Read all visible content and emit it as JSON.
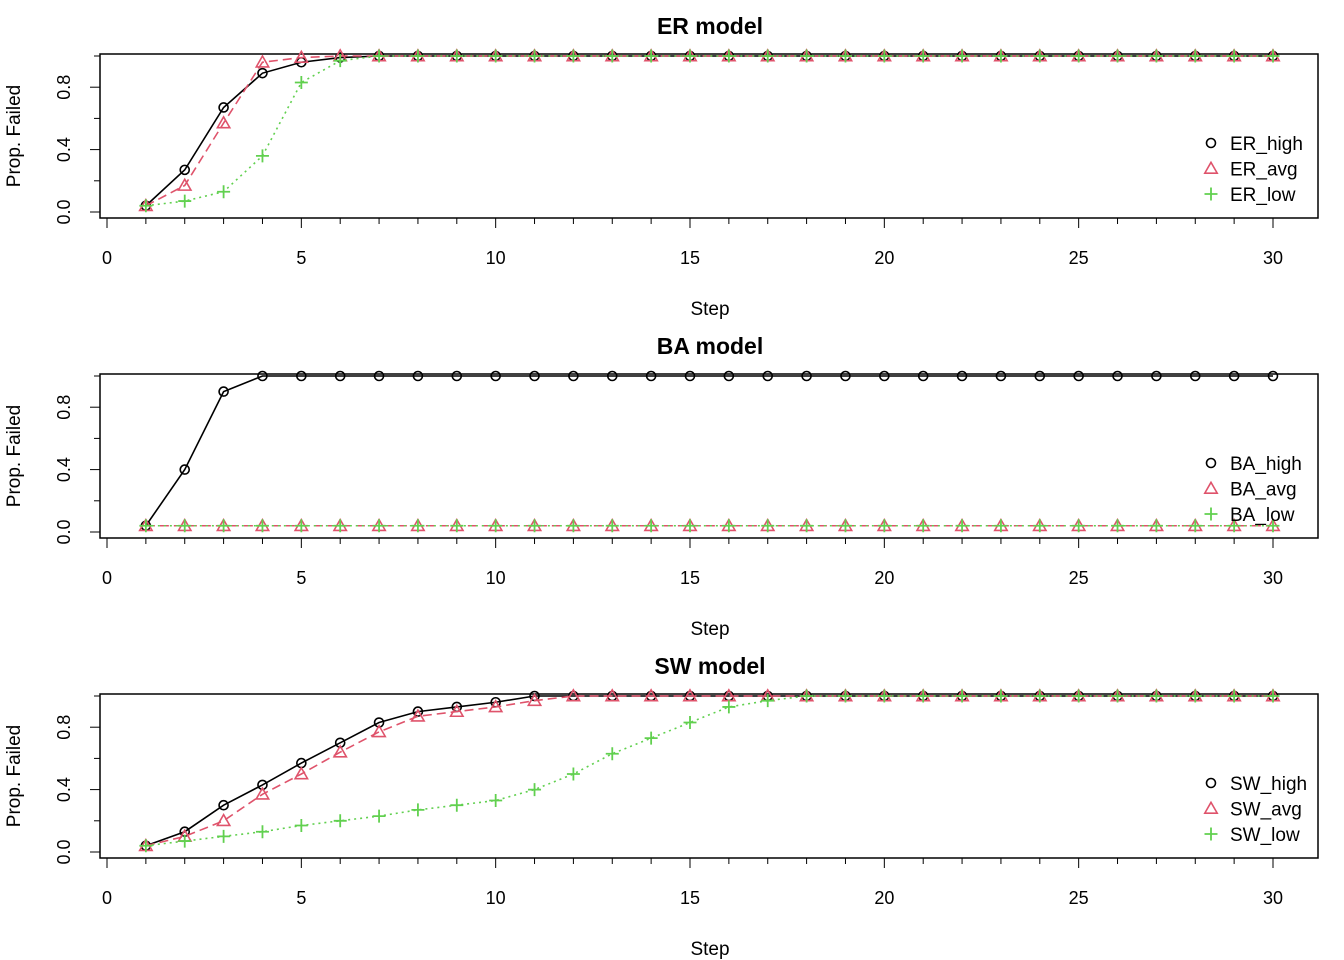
{
  "chart_data": [
    {
      "type": "line",
      "title": "ER model",
      "xlabel": "Step",
      "ylabel": "Prop. Failed",
      "xlim": [
        0,
        30
      ],
      "ylim": [
        0,
        1
      ],
      "xticks": [
        0,
        5,
        10,
        15,
        20,
        25,
        30
      ],
      "yticks": [
        0.0,
        0.4,
        0.8
      ],
      "ytick_labels": [
        "0.0",
        "0.4",
        "0.8"
      ],
      "legend_position": "right",
      "x": [
        1,
        2,
        3,
        4,
        5,
        6,
        7,
        8,
        9,
        10,
        11,
        12,
        13,
        14,
        15,
        16,
        17,
        18,
        19,
        20,
        21,
        22,
        23,
        24,
        25,
        26,
        27,
        28,
        29,
        30
      ],
      "series": [
        {
          "name": "ER_high",
          "color": "#000000",
          "marker": "circle",
          "dash": "solid",
          "values": [
            0.04,
            0.27,
            0.67,
            0.89,
            0.96,
            0.99,
            1,
            1,
            1,
            1,
            1,
            1,
            1,
            1,
            1,
            1,
            1,
            1,
            1,
            1,
            1,
            1,
            1,
            1,
            1,
            1,
            1,
            1,
            1,
            1
          ]
        },
        {
          "name": "ER_avg",
          "color": "#DF536B",
          "marker": "triangle",
          "dash": "dashed",
          "values": [
            0.04,
            0.17,
            0.57,
            0.96,
            0.99,
            1,
            1,
            1,
            1,
            1,
            1,
            1,
            1,
            1,
            1,
            1,
            1,
            1,
            1,
            1,
            1,
            1,
            1,
            1,
            1,
            1,
            1,
            1,
            1,
            1
          ]
        },
        {
          "name": "ER_low",
          "color": "#61D04F",
          "marker": "plus",
          "dash": "dotted",
          "values": [
            0.04,
            0.07,
            0.13,
            0.36,
            0.83,
            0.97,
            1,
            1,
            1,
            1,
            1,
            1,
            1,
            1,
            1,
            1,
            1,
            1,
            1,
            1,
            1,
            1,
            1,
            1,
            1,
            1,
            1,
            1,
            1,
            1
          ]
        }
      ]
    },
    {
      "type": "line",
      "title": "BA model",
      "xlabel": "Step",
      "ylabel": "Prop. Failed",
      "xlim": [
        0,
        30
      ],
      "ylim": [
        0,
        1
      ],
      "xticks": [
        0,
        5,
        10,
        15,
        20,
        25,
        30
      ],
      "yticks": [
        0.0,
        0.4,
        0.8
      ],
      "ytick_labels": [
        "0.0",
        "0.4",
        "0.8"
      ],
      "legend_position": "right",
      "x": [
        1,
        2,
        3,
        4,
        5,
        6,
        7,
        8,
        9,
        10,
        11,
        12,
        13,
        14,
        15,
        16,
        17,
        18,
        19,
        20,
        21,
        22,
        23,
        24,
        25,
        26,
        27,
        28,
        29,
        30
      ],
      "series": [
        {
          "name": "BA_high",
          "color": "#000000",
          "marker": "circle",
          "dash": "solid",
          "values": [
            0.04,
            0.4,
            0.9,
            1,
            1,
            1,
            1,
            1,
            1,
            1,
            1,
            1,
            1,
            1,
            1,
            1,
            1,
            1,
            1,
            1,
            1,
            1,
            1,
            1,
            1,
            1,
            1,
            1,
            1,
            1
          ]
        },
        {
          "name": "BA_avg",
          "color": "#DF536B",
          "marker": "triangle",
          "dash": "dashed",
          "values": [
            0.04,
            0.04,
            0.04,
            0.04,
            0.04,
            0.04,
            0.04,
            0.04,
            0.04,
            0.04,
            0.04,
            0.04,
            0.04,
            0.04,
            0.04,
            0.04,
            0.04,
            0.04,
            0.04,
            0.04,
            0.04,
            0.04,
            0.04,
            0.04,
            0.04,
            0.04,
            0.04,
            0.04,
            0.04,
            0.04
          ]
        },
        {
          "name": "BA_low",
          "color": "#61D04F",
          "marker": "plus",
          "dash": "dotted",
          "values": [
            0.04,
            0.04,
            0.04,
            0.04,
            0.04,
            0.04,
            0.04,
            0.04,
            0.04,
            0.04,
            0.04,
            0.04,
            0.04,
            0.04,
            0.04,
            0.04,
            0.04,
            0.04,
            0.04,
            0.04,
            0.04,
            0.04,
            0.04,
            0.04,
            0.04,
            0.04,
            0.04,
            0.04,
            0.04,
            0.04
          ]
        }
      ]
    },
    {
      "type": "line",
      "title": "SW model",
      "xlabel": "Step",
      "ylabel": "Prop. Failed",
      "xlim": [
        0,
        30
      ],
      "ylim": [
        0,
        1
      ],
      "xticks": [
        0,
        5,
        10,
        15,
        20,
        25,
        30
      ],
      "yticks": [
        0.0,
        0.4,
        0.8
      ],
      "ytick_labels": [
        "0.0",
        "0.4",
        "0.8"
      ],
      "legend_position": "right",
      "x": [
        1,
        2,
        3,
        4,
        5,
        6,
        7,
        8,
        9,
        10,
        11,
        12,
        13,
        14,
        15,
        16,
        17,
        18,
        19,
        20,
        21,
        22,
        23,
        24,
        25,
        26,
        27,
        28,
        29,
        30
      ],
      "series": [
        {
          "name": "SW_high",
          "color": "#000000",
          "marker": "circle",
          "dash": "solid",
          "values": [
            0.04,
            0.13,
            0.3,
            0.43,
            0.57,
            0.7,
            0.83,
            0.9,
            0.93,
            0.96,
            1,
            1,
            1,
            1,
            1,
            1,
            1,
            1,
            1,
            1,
            1,
            1,
            1,
            1,
            1,
            1,
            1,
            1,
            1,
            1
          ]
        },
        {
          "name": "SW_avg",
          "color": "#DF536B",
          "marker": "triangle",
          "dash": "dashed",
          "values": [
            0.04,
            0.1,
            0.2,
            0.37,
            0.5,
            0.64,
            0.77,
            0.87,
            0.9,
            0.93,
            0.97,
            1,
            1,
            1,
            1,
            1,
            1,
            1,
            1,
            1,
            1,
            1,
            1,
            1,
            1,
            1,
            1,
            1,
            1,
            1
          ]
        },
        {
          "name": "SW_low",
          "color": "#61D04F",
          "marker": "plus",
          "dash": "dotted",
          "values": [
            0.04,
            0.07,
            0.1,
            0.13,
            0.17,
            0.2,
            0.23,
            0.27,
            0.3,
            0.33,
            0.4,
            0.5,
            0.63,
            0.73,
            0.83,
            0.93,
            0.97,
            1,
            1,
            1,
            1,
            1,
            1,
            1,
            1,
            1,
            1,
            1,
            1,
            1
          ]
        }
      ]
    }
  ]
}
